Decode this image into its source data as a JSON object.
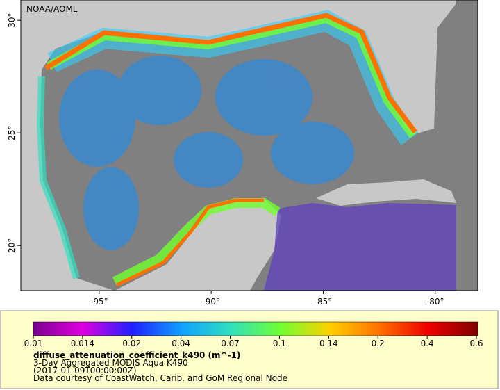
{
  "map": {
    "credit": "NOAA/AOML",
    "xlim": [
      -98.5,
      -78.1
    ],
    "ylim": [
      18.0,
      30.9
    ],
    "xticks": [
      {
        "value": -95,
        "label": "-95°"
      },
      {
        "value": -90,
        "label": "-90°"
      },
      {
        "value": -85,
        "label": "-85°"
      },
      {
        "value": -80,
        "label": "-80°"
      }
    ],
    "yticks": [
      {
        "value": 20,
        "label": "20°"
      },
      {
        "value": 25,
        "label": "25°"
      },
      {
        "value": 30,
        "label": "30°"
      }
    ]
  },
  "legend": {
    "ticks": [
      0.01,
      0.014,
      0.02,
      0.04,
      0.07,
      0.1,
      0.14,
      0.2,
      0.4,
      0.6
    ],
    "colors": [
      "#7a0090",
      "#e000e0",
      "#2020ff",
      "#10a0ff",
      "#30e0c0",
      "#70ff30",
      "#ffd000",
      "#ff7000",
      "#ee0000",
      "#800000"
    ],
    "title": "diffuse_attenuation_coefficient_k490 (m^-1)",
    "lines": [
      "3-Day Aggregated MODIS Aqua K490",
      "(2017-01-09T00:00:00Z)",
      "Data courtesy of CoastWatch, Carib. and GoM Regional Node"
    ]
  }
}
